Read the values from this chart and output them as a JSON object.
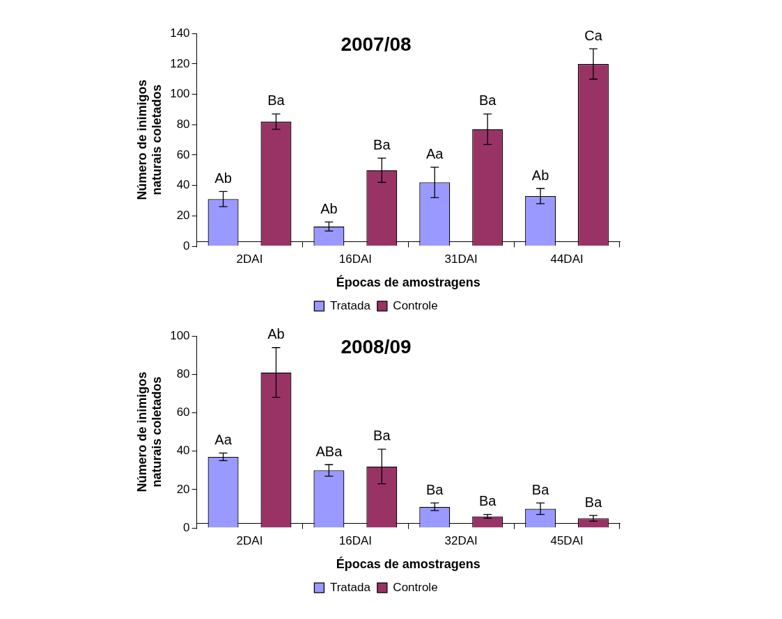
{
  "chart_data": [
    {
      "type": "bar",
      "title": "2007/08",
      "xlabel": "Épocas de amostragens",
      "ylabel": "Número de inimigos naturais coletados",
      "categories": [
        "2DAI",
        "16DAI",
        "31DAI",
        "44DAI"
      ],
      "ylim": [
        0,
        140
      ],
      "yticks": [
        0,
        20,
        40,
        60,
        80,
        100,
        120,
        140
      ],
      "grid": false,
      "legend": "bottom",
      "series": [
        {
          "name": "Tratada",
          "color": "#9999ff",
          "values": [
            31,
            13,
            42,
            33
          ],
          "errors": [
            5,
            3,
            10,
            5
          ],
          "value_labels": [
            "Ab",
            "Ab",
            "Aa",
            "Ab"
          ]
        },
        {
          "name": "Controle",
          "color": "#993366",
          "values": [
            82,
            50,
            77,
            120
          ],
          "errors": [
            5,
            8,
            10,
            10
          ],
          "value_labels": [
            "Ba",
            "Ba",
            "Ba",
            "Ca"
          ]
        }
      ]
    },
    {
      "type": "bar",
      "title": "2008/09",
      "xlabel": "Épocas de amostragens",
      "ylabel": "Número de inimigos naturais coletados",
      "categories": [
        "2DAI",
        "16DAI",
        "32DAI",
        "45DAI"
      ],
      "ylim": [
        0,
        100
      ],
      "yticks": [
        0,
        20,
        40,
        60,
        80,
        100
      ],
      "grid": false,
      "legend": "bottom",
      "series": [
        {
          "name": "Tratada",
          "color": "#9999ff",
          "values": [
            37,
            30,
            11,
            10
          ],
          "errors": [
            2,
            3,
            2,
            3
          ],
          "value_labels": [
            "Aa",
            "ABa",
            "Ba",
            "Ba"
          ]
        },
        {
          "name": "Controle",
          "color": "#993366",
          "values": [
            81,
            32,
            6,
            5
          ],
          "errors": [
            13,
            9,
            1,
            1.5
          ],
          "value_labels": [
            "Ab",
            "Ba",
            "Ba",
            "Ba"
          ]
        }
      ]
    }
  ]
}
